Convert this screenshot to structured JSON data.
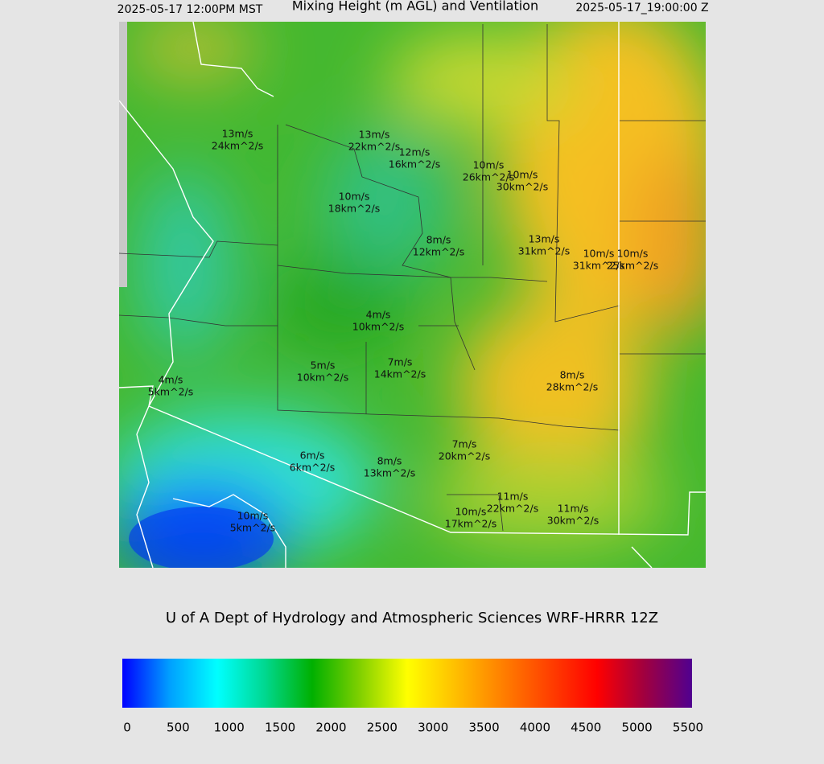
{
  "header": {
    "left": "2025-05-17 12:00PM MST",
    "title": "Mixing Height (m AGL) and Ventilation",
    "right": "2025-05-17_19:00:00 Z"
  },
  "labels": [
    {
      "speed": "13m/s",
      "vent": "24km^2/s"
    },
    {
      "speed": "13m/s",
      "vent": "22km^2/s"
    },
    {
      "speed": "12m/s",
      "vent": "16km^2/s"
    },
    {
      "speed": "10m/s",
      "vent": "26km^2/s"
    },
    {
      "speed": "10m/s",
      "vent": "30km^2/s"
    },
    {
      "speed": "10m/s",
      "vent": "18km^2/s"
    },
    {
      "speed": "8m/s",
      "vent": "12km^2/s"
    },
    {
      "speed": "13m/s",
      "vent": "31km^2/s"
    },
    {
      "speed": "10m/s",
      "vent": "31km^2/s"
    },
    {
      "speed": "10m/s",
      "vent": "25km^2/s"
    },
    {
      "speed": "4m/s",
      "vent": "10km^2/s"
    },
    {
      "speed": "7m/s",
      "vent": "14km^2/s"
    },
    {
      "speed": "5m/s",
      "vent": "10km^2/s"
    },
    {
      "speed": "4m/s",
      "vent": "5km^2/s"
    },
    {
      "speed": "8m/s",
      "vent": "28km^2/s"
    },
    {
      "speed": "7m/s",
      "vent": "20km^2/s"
    },
    {
      "speed": "6m/s",
      "vent": "6km^2/s"
    },
    {
      "speed": "8m/s",
      "vent": "13km^2/s"
    },
    {
      "speed": "11m/s",
      "vent": "22km^2/s"
    },
    {
      "speed": "10m/s",
      "vent": "17km^2/s"
    },
    {
      "speed": "11m/s",
      "vent": "30km^2/s"
    },
    {
      "speed": "10m/s",
      "vent": "5km^2/s"
    }
  ],
  "credit": "U of A Dept of Hydrology and Atmospheric Sciences WRF-HRRR 12Z",
  "colorbar": {
    "ticks": [
      0,
      500,
      1000,
      1500,
      2000,
      2500,
      3000,
      3500,
      4000,
      4500,
      5000,
      5500
    ],
    "colors": [
      "#0000ff",
      "#00a0ff",
      "#00ffff",
      "#00d890",
      "#00b000",
      "#80d000",
      "#ffff00",
      "#ffc000",
      "#ff8000",
      "#ff4000",
      "#ff0000",
      "#a00040",
      "#500090"
    ]
  }
}
